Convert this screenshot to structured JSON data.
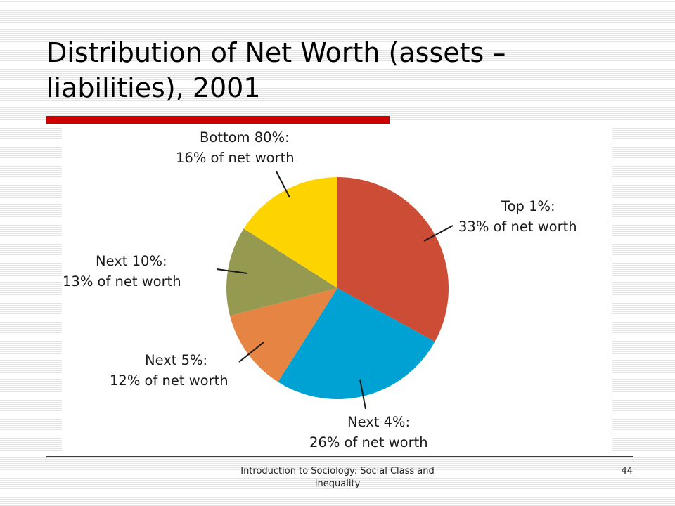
{
  "slide": {
    "title": "Distribution of Net Worth (assets – liabilities), 2001",
    "footer": "Introduction to Sociology: Social Class and Inequality",
    "page_number": "44"
  },
  "chart_data": {
    "type": "pie",
    "title": "",
    "slices": [
      {
        "group": "Top 1%:",
        "share": "33% of net worth",
        "value": 33,
        "color": "#cd4c35"
      },
      {
        "group": "Next 4%:",
        "share": "26% of net worth",
        "value": 26,
        "color": "#00a1d3"
      },
      {
        "group": "Next 5%:",
        "share": "12% of net worth",
        "value": 12,
        "color": "#e58443"
      },
      {
        "group": "Next 10%:",
        "share": "13% of net worth",
        "value": 13,
        "color": "#969a51"
      },
      {
        "group": "Bottom 80%:",
        "share": "16% of net worth",
        "value": 16,
        "color": "#fdd300"
      }
    ]
  },
  "colors": {
    "accent": "#cc0000"
  }
}
